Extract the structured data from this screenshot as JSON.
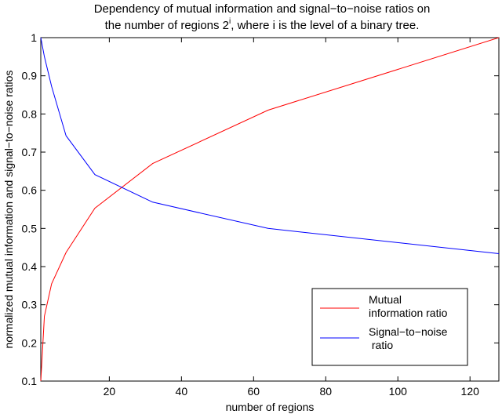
{
  "chart_data": {
    "type": "line",
    "title": {
      "line1": "Dependency of mutual information and signal−to−noise ratios on",
      "line2_pre": "the number of regions 2",
      "line2_sup": "i",
      "line2_post": ", where i is the level of a binary tree."
    },
    "xlabel": "number of regions",
    "ylabel": "normalized mutual information and signal−to−noise ratios",
    "xlim": [
      1,
      128
    ],
    "ylim": [
      0.1,
      1.0
    ],
    "xticks": [
      20,
      40,
      60,
      80,
      100,
      120
    ],
    "yticks": [
      0.1,
      0.2,
      0.3,
      0.4,
      0.5,
      0.6,
      0.7,
      0.8,
      0.9,
      1.0
    ],
    "ytick_labels": [
      "0.1",
      "0.2",
      "0.3",
      "0.4",
      "0.5",
      "0.6",
      "0.7",
      "0.8",
      "0.9",
      "1"
    ],
    "grid": false,
    "legend_position": "bottom-right",
    "series": [
      {
        "name_lines": [
          "Mutual",
          "information ratio"
        ],
        "color": "#ff0000",
        "x": [
          1,
          2,
          4,
          8,
          16,
          32,
          64,
          128
        ],
        "y": [
          0.1,
          0.27,
          0.355,
          0.437,
          0.553,
          0.67,
          0.81,
          1.0
        ]
      },
      {
        "name_lines": [
          "Signal−to−noise",
          " ratio"
        ],
        "color": "#0000ff",
        "x": [
          1,
          2,
          4,
          8,
          16,
          32,
          64,
          128
        ],
        "y": [
          1.0,
          0.95,
          0.872,
          0.743,
          0.641,
          0.569,
          0.5,
          0.434
        ]
      }
    ]
  }
}
